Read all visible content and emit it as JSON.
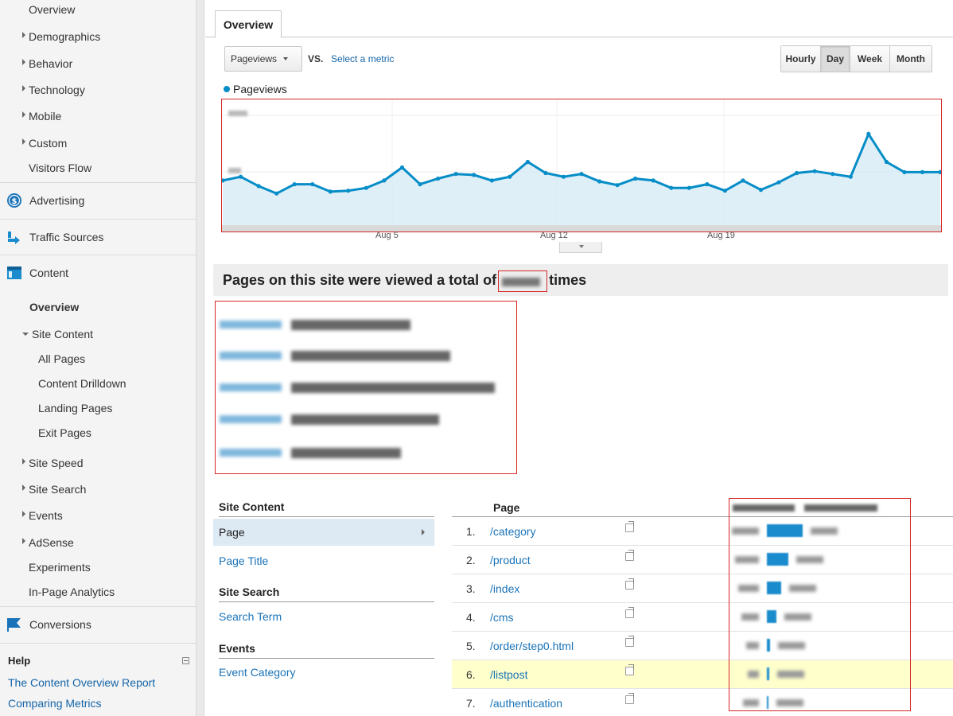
{
  "sidebar": {
    "audience_items": [
      {
        "label": "Overview",
        "expandable": false
      },
      {
        "label": "Demographics",
        "expandable": true
      },
      {
        "label": "Behavior",
        "expandable": true
      },
      {
        "label": "Technology",
        "expandable": true
      },
      {
        "label": "Mobile",
        "expandable": true
      },
      {
        "label": "Custom",
        "expandable": true
      },
      {
        "label": "Visitors Flow",
        "expandable": false
      }
    ],
    "sections": {
      "advertising": "Advertising",
      "traffic_sources": "Traffic Sources",
      "content": "Content",
      "conversions": "Conversions"
    },
    "content_items": {
      "overview": "Overview",
      "site_content": "Site Content",
      "all_pages": "All Pages",
      "content_drilldown": "Content Drilldown",
      "landing_pages": "Landing Pages",
      "exit_pages": "Exit Pages",
      "site_speed": "Site Speed",
      "site_search": "Site Search",
      "events": "Events",
      "adsense": "AdSense",
      "experiments": "Experiments",
      "in_page_analytics": "In-Page Analytics"
    },
    "help": {
      "title": "Help",
      "links": [
        "The Content Overview Report",
        "Comparing Metrics"
      ]
    }
  },
  "main": {
    "tab": "Overview",
    "metric_select": "Pageviews",
    "vs_label": "VS.",
    "select_metric_link": "Select a metric",
    "granularity": [
      "Hourly",
      "Day",
      "Week",
      "Month"
    ],
    "granularity_active": "Day",
    "legend": "Pageviews",
    "x_ticks": [
      "Aug 5",
      "Aug 12",
      "Aug 19"
    ],
    "total_prefix": "Pages on this site were viewed a total of",
    "total_suffix": "times"
  },
  "chart_data": {
    "type": "area",
    "series": [
      {
        "name": "Pageviews",
        "color": "#058dc7",
        "values": [
          48,
          52,
          42,
          34,
          44,
          44,
          36,
          37,
          40,
          48,
          62,
          44,
          50,
          55,
          54,
          48,
          52,
          68,
          56,
          52,
          55,
          47,
          43,
          50,
          48,
          40,
          40,
          44,
          37,
          48,
          38,
          46,
          56,
          58,
          55,
          52,
          98,
          68,
          57,
          57,
          57
        ]
      }
    ],
    "ylim": [
      0,
      130
    ],
    "grid": true
  },
  "site_content_nav": {
    "site_content_heading": "Site Content",
    "page_selected": "Page",
    "page_title_link": "Page Title",
    "site_search_heading": "Site Search",
    "search_term_link": "Search Term",
    "events_heading": "Events",
    "event_category_link": "Event Category"
  },
  "page_table": {
    "column_header": "Page",
    "rows": [
      {
        "rank": "1.",
        "page": "/category",
        "bar_share": 0.43
      },
      {
        "rank": "2.",
        "page": "/product",
        "bar_share": 0.26
      },
      {
        "rank": "3.",
        "page": "/index",
        "bar_share": 0.17
      },
      {
        "rank": "4.",
        "page": "/cms",
        "bar_share": 0.11
      },
      {
        "rank": "5.",
        "page": "/order/step0.html",
        "bar_share": 0.04
      },
      {
        "rank": "6.",
        "page": "/listpost",
        "bar_share": 0.03
      },
      {
        "rank": "7.",
        "page": "/authentication",
        "bar_share": 0.02
      }
    ],
    "highlighted_row": 5
  }
}
